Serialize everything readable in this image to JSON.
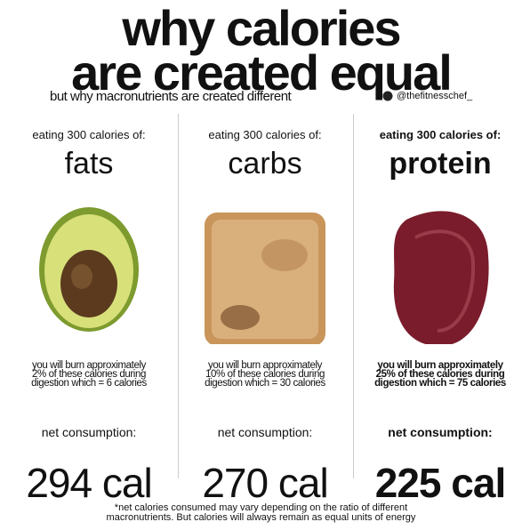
{
  "header": {
    "title_lines": [
      "why calories",
      "are created equal"
    ],
    "subtitle": "but why macronutrients are created different",
    "handle": "@thefitnesschef_"
  },
  "columns": [
    {
      "intro": "eating 300 calories of:",
      "macro": "fats",
      "burn_lines": [
        "you will burn approximately",
        "2% of these calories during",
        "digestion which = 6 calories"
      ],
      "net_label": "net consumption:",
      "net_value": "294 cal"
    },
    {
      "intro": "eating 300 calories of:",
      "macro": "carbs",
      "burn_lines": [
        "you will burn approximately",
        "10% of these calories during",
        "digestion which = 30 calories"
      ],
      "net_label": "net consumption:",
      "net_value": "270 cal"
    },
    {
      "intro": "eating 300 calories of:",
      "macro": "protein",
      "burn_lines": [
        "you will burn approximately",
        "25% of these calories during",
        "digestion which = 75 calories"
      ],
      "net_label": "net consumption:",
      "net_value": "225 cal"
    }
  ],
  "footnote_lines": [
    "*net calories consumed may vary depending on the ratio of different",
    "macronutrients. But calories will always remain as equal units of energy"
  ]
}
